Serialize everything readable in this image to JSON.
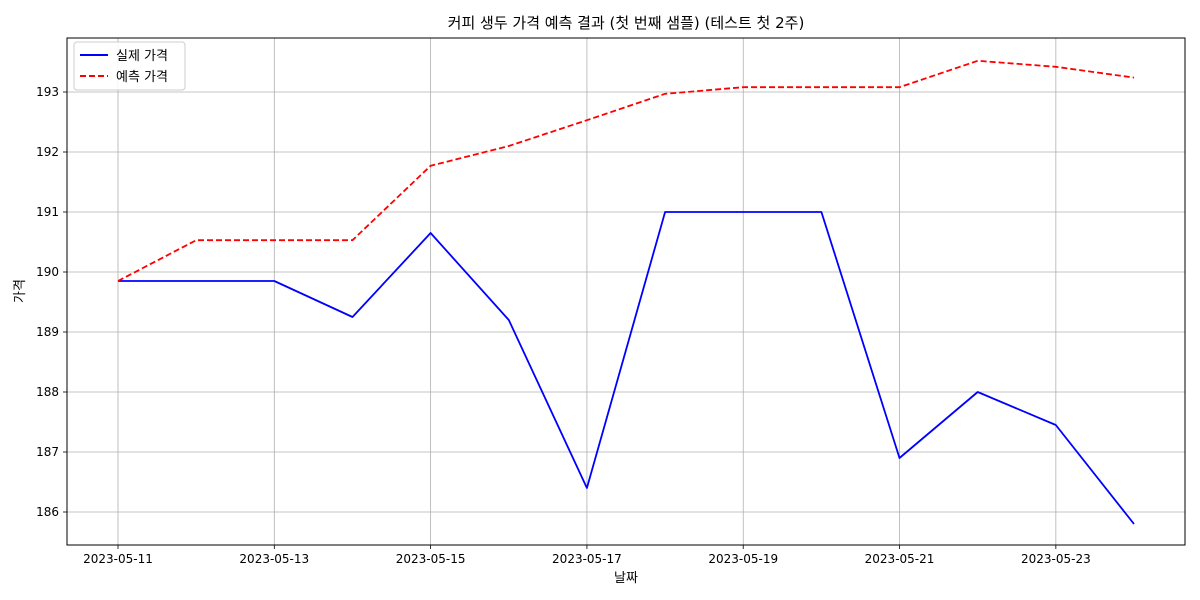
{
  "chart_data": {
    "type": "line",
    "title": "커피 생두 가격 예측 결과 (첫 번째 샘플) (테스트 첫 2주)",
    "xlabel": "날짜",
    "ylabel": "가격",
    "x": [
      "2023-05-11",
      "2023-05-12",
      "2023-05-13",
      "2023-05-14",
      "2023-05-15",
      "2023-05-16",
      "2023-05-17",
      "2023-05-18",
      "2023-05-19",
      "2023-05-20",
      "2023-05-21",
      "2023-05-22",
      "2023-05-23",
      "2023-05-24"
    ],
    "x_tick_labels": [
      "2023-05-11",
      "2023-05-13",
      "2023-05-15",
      "2023-05-17",
      "2023-05-19",
      "2023-05-21",
      "2023-05-23"
    ],
    "y_ticks": [
      186,
      187,
      188,
      189,
      190,
      191,
      192,
      193
    ],
    "ylim": [
      185.45,
      193.9
    ],
    "grid": true,
    "legend_position": "top-left",
    "series": [
      {
        "name": "실제 가격",
        "color": "#0000ff",
        "style": "solid",
        "values": [
          189.85,
          189.85,
          189.85,
          189.25,
          190.65,
          189.2,
          186.4,
          191.0,
          191.0,
          191.0,
          186.9,
          188.0,
          187.45,
          185.8
        ]
      },
      {
        "name": "예측 가격",
        "color": "#ff0000",
        "style": "dashed",
        "values": [
          189.85,
          190.53,
          190.53,
          190.53,
          191.77,
          192.1,
          192.53,
          192.97,
          193.08,
          193.08,
          193.08,
          193.52,
          193.42,
          193.24
        ]
      }
    ]
  }
}
